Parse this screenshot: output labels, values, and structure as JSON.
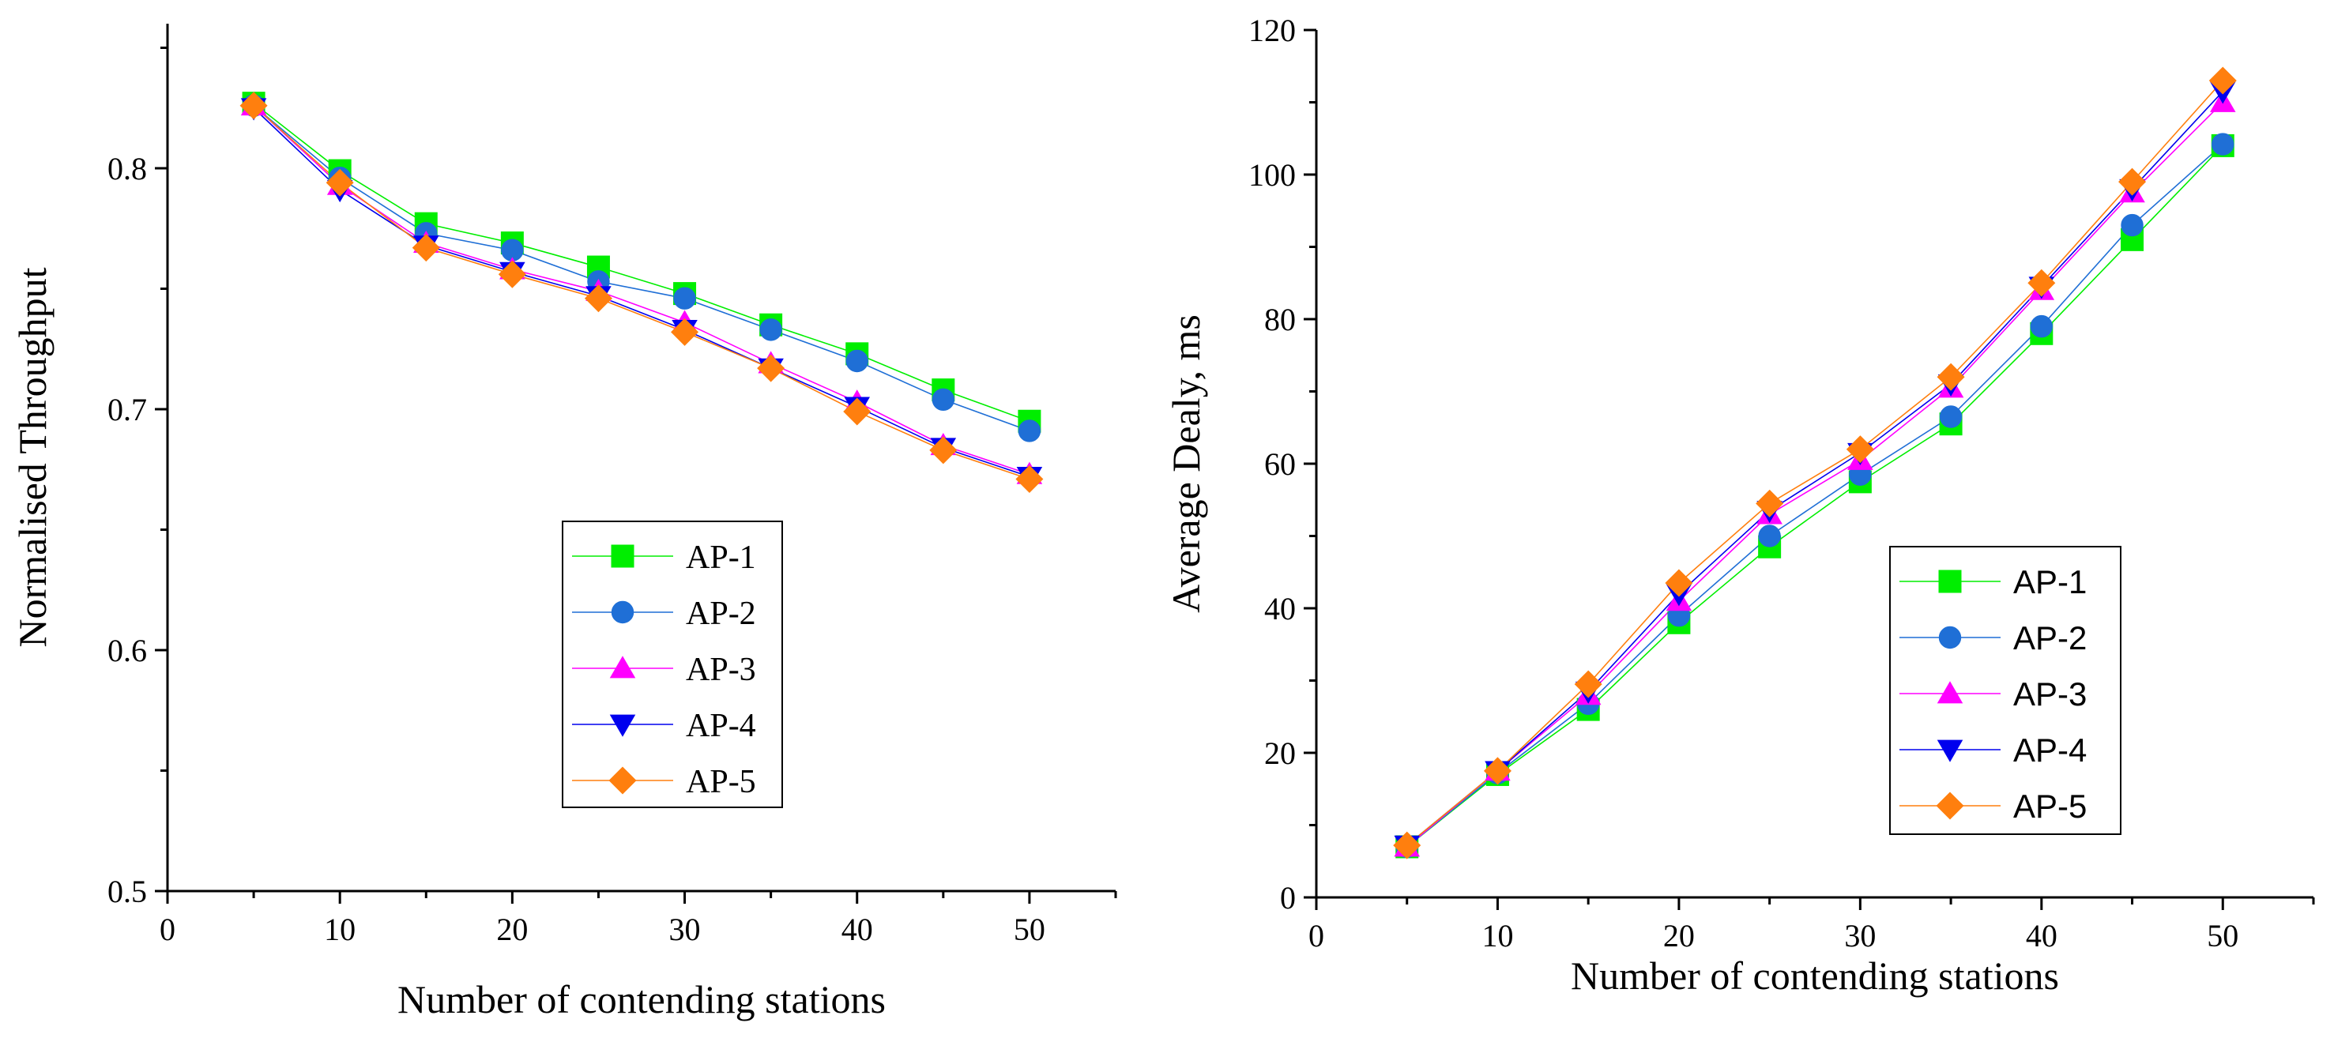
{
  "chart_data": [
    {
      "type": "line",
      "xlabel": "Number of contending stations",
      "ylabel": "Normalised Throughput",
      "xlim": [
        0,
        55
      ],
      "ylim": [
        0.5,
        0.86
      ],
      "xticks": [
        0,
        10,
        20,
        30,
        40,
        50
      ],
      "xtick_labels": [
        "0",
        "10",
        "20",
        "30",
        "40",
        "50"
      ],
      "yticks": [
        0.5,
        0.6,
        0.7,
        0.8
      ],
      "ytick_labels": [
        "0.5",
        "0.6",
        "0.7",
        "0.8"
      ],
      "legend_position": "center-bottom",
      "x": [
        5,
        10,
        15,
        20,
        25,
        30,
        35,
        40,
        45,
        50
      ],
      "series": [
        {
          "name": "AP-1",
          "color": "#00ee00",
          "marker": "square",
          "values": [
            0.827,
            0.799,
            0.777,
            0.769,
            0.759,
            0.748,
            0.735,
            0.723,
            0.708,
            0.695
          ]
        },
        {
          "name": "AP-2",
          "color": "#1f6fd6",
          "marker": "circle",
          "values": [
            0.826,
            0.796,
            0.773,
            0.766,
            0.753,
            0.746,
            0.733,
            0.72,
            0.704,
            0.691
          ]
        },
        {
          "name": "AP-3",
          "color": "#ff00ff",
          "marker": "triangle-up",
          "values": [
            0.826,
            0.793,
            0.769,
            0.758,
            0.749,
            0.736,
            0.719,
            0.703,
            0.685,
            0.673
          ]
        },
        {
          "name": "AP-4",
          "color": "#0000ee",
          "marker": "triangle-down",
          "values": [
            0.825,
            0.791,
            0.768,
            0.757,
            0.747,
            0.733,
            0.717,
            0.701,
            0.684,
            0.672
          ]
        },
        {
          "name": "AP-5",
          "color": "#ff7f0e",
          "marker": "diamond",
          "values": [
            0.826,
            0.794,
            0.767,
            0.756,
            0.746,
            0.732,
            0.717,
            0.699,
            0.683,
            0.671
          ]
        }
      ]
    },
    {
      "type": "line",
      "xlabel": "Number of contending stations",
      "ylabel": "Average Dealy, ms",
      "xlim": [
        0,
        55
      ],
      "ylim": [
        0,
        120
      ],
      "xticks": [
        0,
        10,
        20,
        30,
        40,
        50
      ],
      "xtick_labels": [
        "0",
        "10",
        "20",
        "30",
        "40",
        "50"
      ],
      "yticks": [
        0,
        20,
        40,
        60,
        80,
        100,
        120
      ],
      "ytick_labels": [
        "0",
        "20",
        "40",
        "60",
        "80",
        "100",
        "120"
      ],
      "legend_position": "center-bottom",
      "x": [
        5,
        10,
        15,
        20,
        25,
        30,
        35,
        40,
        45,
        50
      ],
      "series": [
        {
          "name": "AP-1",
          "color": "#00ee00",
          "marker": "square",
          "values": [
            7.0,
            17.0,
            26.0,
            38.0,
            48.5,
            57.5,
            65.5,
            78.0,
            91.0,
            104.0
          ]
        },
        {
          "name": "AP-2",
          "color": "#1f6fd6",
          "marker": "circle",
          "values": [
            7.0,
            17.2,
            26.8,
            39.0,
            50.0,
            58.5,
            66.5,
            79.0,
            93.0,
            104.2
          ]
        },
        {
          "name": "AP-3",
          "color": "#ff00ff",
          "marker": "triangle-up",
          "values": [
            7.0,
            17.5,
            28.0,
            41.0,
            53.0,
            60.5,
            70.5,
            84.0,
            97.5,
            110.0
          ]
        },
        {
          "name": "AP-4",
          "color": "#0000ee",
          "marker": "triangle-down",
          "values": [
            7.2,
            17.5,
            28.5,
            42.0,
            53.5,
            61.5,
            71.0,
            84.5,
            98.0,
            111.5
          ]
        },
        {
          "name": "AP-5",
          "color": "#ff7f0e",
          "marker": "diamond",
          "values": [
            7.2,
            17.5,
            29.5,
            43.5,
            54.5,
            62.0,
            72.0,
            85.0,
            99.0,
            113.0
          ]
        }
      ]
    }
  ]
}
